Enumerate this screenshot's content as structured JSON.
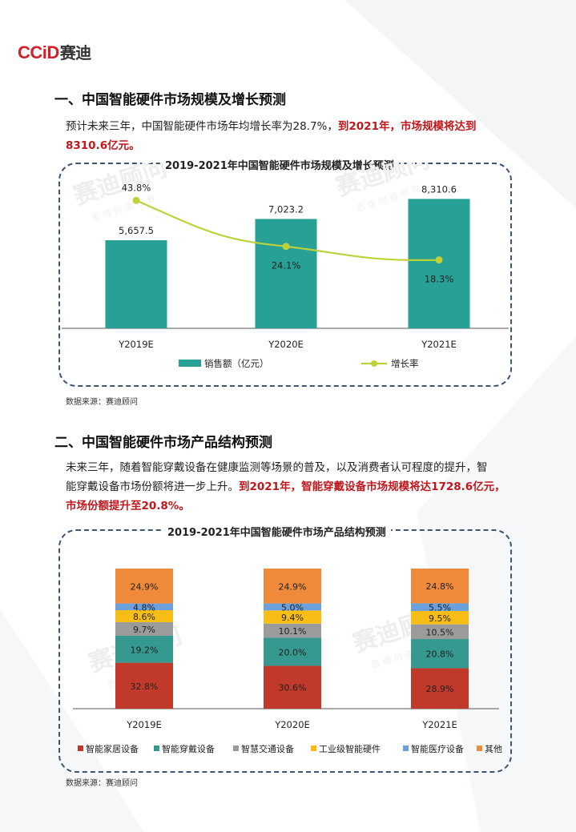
{
  "logo": {
    "ccid": "CCiD",
    "name": "赛迪"
  },
  "watermark": {
    "brand": "赛迪顾问",
    "tagline": "思 维 创 造 世 界"
  },
  "colors": {
    "teal": "#27a096",
    "lime": "#bfd13a",
    "home": "#c0392b",
    "wear": "#36998f",
    "traffic": "#9b9b9b",
    "industrial": "#f9be16",
    "medical": "#6aa0dc",
    "other": "#ee8a3a",
    "accent_red": "#c0171c",
    "panel_border": "#3d5573"
  },
  "section1": {
    "heading": "一、中国智能硬件市场规模及增长预测",
    "para_plain": "预计未来三年，中国智能硬件市场年均增长率为28.7%，",
    "para_red_1": "到2021年，市场规模将达到",
    "para_red_2": "8310.6亿元。",
    "chart_title": "2019-2021年中国智能硬件市场规模及增长预测",
    "source": "数据来源：赛迪顾问"
  },
  "section2": {
    "heading": "二、中国智能硬件市场产品结构预测",
    "para_plain_1": "未来三年，随着智能穿戴设备在健康监测等场景的普及，以及消费者认可程度的提升，智",
    "para_plain_2": "能穿戴设备市场份额将进一步上升。",
    "para_red_1": "到2021年，智能穿戴设备市场规模将达1728.6亿元，",
    "para_red_2": "市场份额提升至20.8%。",
    "chart_title": "2019-2021年中国智能硬件市场产品结构预测",
    "source": "数据来源：赛迪顾问"
  },
  "chart_data": [
    {
      "type": "bar",
      "title": "2019-2021年中国智能硬件市场规模及增长预测",
      "categories": [
        "Y2019E",
        "Y2020E",
        "Y2021E"
      ],
      "series": [
        {
          "name": "销售额（亿元）",
          "type": "bar",
          "values": [
            5657.5,
            7023.2,
            8310.6
          ],
          "labels": [
            "5,657.5",
            "7,023.2",
            "8,310.6"
          ]
        },
        {
          "name": "增长率",
          "type": "line",
          "values": [
            43.8,
            24.1,
            18.3
          ],
          "labels": [
            "43.8%",
            "24.1%",
            "18.3%"
          ]
        }
      ],
      "legend": "bottom",
      "grid": false
    },
    {
      "type": "bar",
      "stacked": true,
      "title": "2019-2021年中国智能硬件市场产品结构预测",
      "categories": [
        "Y2019E",
        "Y2020E",
        "Y2021E"
      ],
      "series": [
        {
          "name": "智能家居设备",
          "values": [
            32.8,
            30.6,
            28.9
          ]
        },
        {
          "name": "智能穿戴设备",
          "values": [
            19.2,
            20.0,
            20.8
          ]
        },
        {
          "name": "智慧交通设备",
          "values": [
            9.7,
            10.1,
            10.5
          ]
        },
        {
          "name": "工业级智能硬件",
          "values": [
            8.6,
            9.4,
            9.5
          ]
        },
        {
          "name": "智能医疗设备",
          "values": [
            4.8,
            5.0,
            5.5
          ]
        },
        {
          "name": "其他",
          "values": [
            24.9,
            24.9,
            24.8
          ]
        }
      ],
      "labels": [
        [
          "32.8%",
          "30.6%",
          "28.9%"
        ],
        [
          "19.2%",
          "20.0%",
          "20.8%"
        ],
        [
          "9.7%",
          "10.1%",
          "10.5%"
        ],
        [
          "8.6%",
          "9.4%",
          "9.5%"
        ],
        [
          "4.8%",
          "5.0%",
          "5.5%"
        ],
        [
          "24.9%",
          "24.9%",
          "24.8%"
        ]
      ],
      "legend": "bottom",
      "grid": false
    }
  ]
}
